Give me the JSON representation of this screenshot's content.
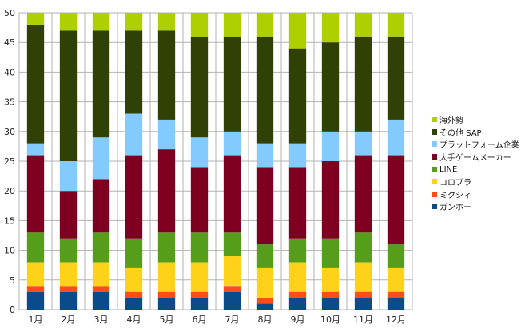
{
  "chart_data": {
    "type": "bar",
    "stacked": true,
    "categories": [
      "1月",
      "2月",
      "3月",
      "4月",
      "5月",
      "6月",
      "7月",
      "8月",
      "9月",
      "10月",
      "11月",
      "12月"
    ],
    "ylim": [
      0,
      50
    ],
    "yticks": [
      0,
      5,
      10,
      15,
      20,
      25,
      30,
      35,
      40,
      45,
      50
    ],
    "grid": true,
    "legend_position": "right",
    "series": [
      {
        "name": "ガンホー",
        "color": "#0b4a8b",
        "values": [
          3,
          3,
          3,
          2,
          2,
          2,
          3,
          1,
          2,
          2,
          2,
          2
        ]
      },
      {
        "name": "ミクシィ",
        "color": "#ff4d1a",
        "values": [
          1,
          1,
          1,
          1,
          1,
          1,
          1,
          1,
          1,
          1,
          1,
          1
        ]
      },
      {
        "name": "コロプラ",
        "color": "#ffd21a",
        "values": [
          4,
          4,
          4,
          4,
          5,
          5,
          5,
          5,
          5,
          4,
          5,
          4
        ]
      },
      {
        "name": "LINE",
        "color": "#579d1c",
        "values": [
          5,
          4,
          5,
          5,
          5,
          5,
          4,
          4,
          4,
          5,
          5,
          4
        ]
      },
      {
        "name": "大手ゲームメーカー",
        "color": "#7e0021",
        "values": [
          13,
          8,
          9,
          14,
          14,
          11,
          13,
          13,
          12,
          13,
          13,
          15
        ]
      },
      {
        "name": "プラットフォーム企業",
        "color": "#83caff",
        "values": [
          2,
          5,
          7,
          7,
          5,
          5,
          4,
          4,
          4,
          5,
          4,
          6
        ]
      },
      {
        "name": "その他 SAP",
        "color": "#314004",
        "values": [
          20,
          22,
          18,
          14,
          15,
          17,
          16,
          18,
          16,
          15,
          16,
          14
        ]
      },
      {
        "name": "海外勢",
        "color": "#aecf00",
        "values": [
          2,
          3,
          3,
          3,
          3,
          4,
          4,
          4,
          6,
          5,
          4,
          4
        ]
      }
    ]
  }
}
